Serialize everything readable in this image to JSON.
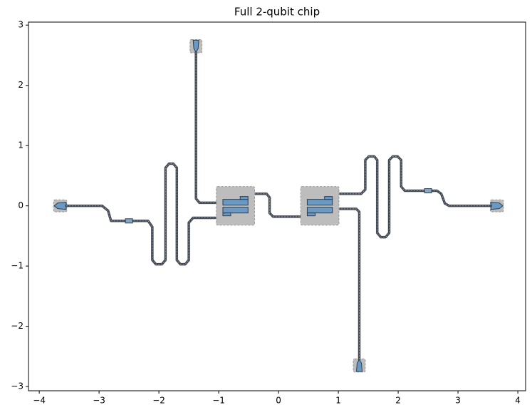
{
  "chart_data": {
    "type": "layout",
    "title": "Full 2-qubit chip",
    "xlim": [
      -4.18,
      4.13
    ],
    "ylim": [
      -3.07,
      3.05
    ],
    "xticks": [
      {
        "value": -4,
        "label": "−4"
      },
      {
        "value": -3,
        "label": "−3"
      },
      {
        "value": -2,
        "label": "−2"
      },
      {
        "value": -1,
        "label": "−1"
      },
      0,
      1,
      2,
      3,
      4
    ],
    "yticks": [
      {
        "value": -3,
        "label": "−3"
      },
      {
        "value": -2,
        "label": "−2"
      },
      {
        "value": -1,
        "label": "−1"
      },
      0,
      1,
      2,
      3
    ],
    "wire_color": "#454b55",
    "pad_color": "#6a9ac4",
    "box_color": "#bdbdbd",
    "wires": [
      {
        "x": [
          -3.55,
          -2.95,
          -2.85,
          -2.8,
          -2.18,
          -2.11,
          -2.11,
          -2.05,
          -1.95,
          -1.89,
          -1.89,
          -1.83,
          -1.76,
          -1.7,
          -1.7,
          -1.64,
          -1.56,
          -1.5,
          -1.5,
          -1.43,
          -1.0
        ],
        "y": [
          0,
          0,
          -0.08,
          -0.25,
          -0.25,
          -0.35,
          -0.9,
          -0.97,
          -0.97,
          -0.9,
          0.63,
          0.7,
          0.7,
          0.63,
          -0.9,
          -0.97,
          -0.97,
          -0.9,
          -0.28,
          -0.2,
          -0.2
        ]
      },
      {
        "x": [
          -1.38,
          -1.38,
          -1.32,
          -1.0
        ],
        "y": [
          2.55,
          0.12,
          0.05,
          0.05
        ]
      },
      {
        "x": [
          -0.4,
          -0.2,
          -0.15,
          -0.15,
          -0.09,
          0.37
        ],
        "y": [
          0.2,
          0.2,
          0.14,
          -0.12,
          -0.18,
          -0.18
        ]
      },
      {
        "x": [
          1.0,
          1.38,
          1.45,
          1.45,
          1.51,
          1.6,
          1.65,
          1.65,
          1.71,
          1.79,
          1.85,
          1.85,
          1.91,
          1.99,
          2.05,
          2.05,
          2.11,
          2.65,
          2.72,
          2.78,
          2.85,
          3.55
        ],
        "y": [
          0.2,
          0.2,
          0.27,
          0.76,
          0.82,
          0.82,
          0.76,
          -0.45,
          -0.52,
          -0.52,
          -0.45,
          0.76,
          0.82,
          0.82,
          0.76,
          0.32,
          0.25,
          0.25,
          0.2,
          0.04,
          0,
          0
        ]
      },
      {
        "x": [
          1.0,
          1.3,
          1.35,
          1.35
        ],
        "y": [
          -0.05,
          -0.05,
          -0.1,
          -2.55
        ]
      }
    ],
    "qubits": {
      "x": [
        -0.72,
        0.69
      ],
      "y": [
        0,
        0
      ]
    },
    "launches": {
      "x": [
        -3.65,
        3.65,
        -1.38,
        1.35
      ],
      "y": [
        0,
        0,
        2.65,
        -2.65
      ]
    },
    "couplers": {
      "x": [
        -2.5,
        2.5
      ],
      "y": [
        -0.25,
        0.25
      ]
    }
  }
}
